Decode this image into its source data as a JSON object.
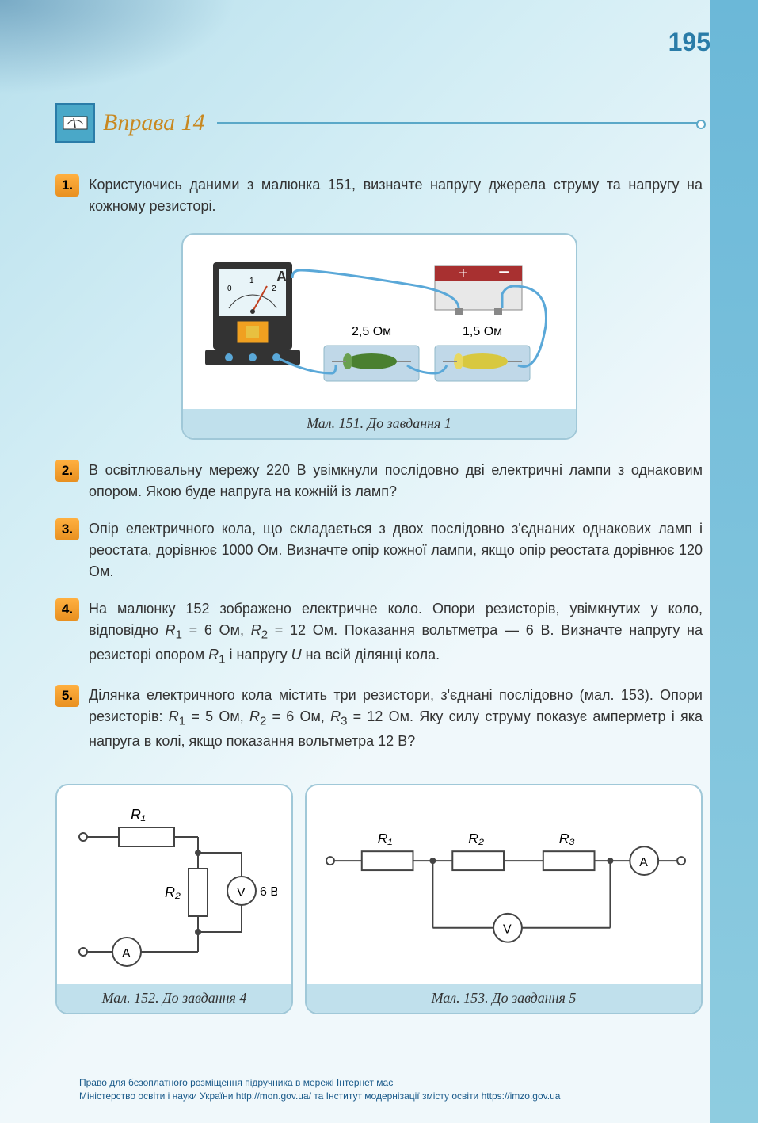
{
  "page_number": "195",
  "exercise": {
    "title": "Вправа 14",
    "icon": "⚡"
  },
  "tasks": [
    {
      "num": "1.",
      "text": "Користуючись даними з малюнка 151, визначте напругу джерела струму та напругу на кожному резисторі."
    },
    {
      "num": "2.",
      "text": "В освітлювальну мережу 220 В увімкнули послідовно дві електричні лампи з однаковим опором. Якою буде напруга на кожній із ламп?"
    },
    {
      "num": "3.",
      "text": "Опір електричного кола, що складається з двох послідовно з'єднаних однакових ламп і реостата, дорівнює 1000 Ом. Визначте опір кожної лампи, якщо опір реостата дорівнює 120 Ом."
    },
    {
      "num": "4.",
      "html": "На малюнку 152 зображено електричне коло. Опори резисторів, увімкнутих у коло, відповідно <em>R</em><sub>1</sub> = 6 Ом, <em>R</em><sub>2</sub> = 12 Ом. Показання вольтметра — 6 В. Визначте напругу на резисторі опором <em>R</em><sub>1</sub> і напругу <em>U</em> на всій ділянці кола."
    },
    {
      "num": "5.",
      "html": "Ділянка електричного кола містить три резистори, з'єднані послідовно (мал. 153). Опори резисторів: <em>R</em><sub>1</sub> = 5 Ом, <em>R</em><sub>2</sub> = 6 Ом, <em>R</em><sub>3</sub> = 12 Ом. Яку силу струму показує амперметр і яка напруга в колі, якщо показання вольтметра 12 В?"
    }
  ],
  "figures": {
    "fig151": {
      "caption": "Мал. 151. До завдання 1",
      "ammeter": {
        "label": "A",
        "ticks": [
          "0",
          "1",
          "2"
        ]
      },
      "r1": "2,5 Ом",
      "r2": "1,5 Ом",
      "colors": {
        "ammeter_body": "#333333",
        "ammeter_display": "#e8f4f8",
        "resistor1": "#4a8030",
        "resistor2": "#d8c840",
        "battery_body": "#e8e8e8",
        "wire": "#5aa8d8",
        "plate": "#c0d8e8"
      }
    },
    "fig152": {
      "caption": "Мал. 152. До завдання 4",
      "labels": {
        "R1": "R₁",
        "R2": "R₂",
        "V": "V",
        "A": "A",
        "voltage": "6 В"
      },
      "stroke": "#444444",
      "stroke_width": 2
    },
    "fig153": {
      "caption": "Мал. 153. До завдання 5",
      "labels": {
        "R1": "R₁",
        "R2": "R₂",
        "R3": "R₃",
        "V": "V",
        "A": "A"
      },
      "stroke": "#444444",
      "stroke_width": 2
    }
  },
  "footer": {
    "line1": "Право для безоплатного розміщення підручника в мережі Інтернет має",
    "line2": "Міністерство освіти і науки України http://mon.gov.ua/ та Інститут модернізації змісту освіти https://imzo.gov.ua"
  }
}
